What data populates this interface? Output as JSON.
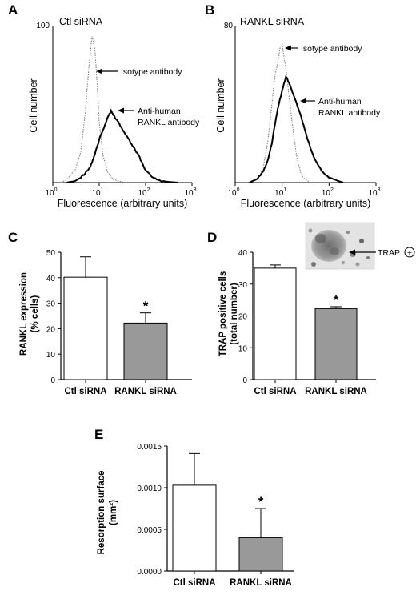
{
  "panel_labels": [
    "A",
    "B",
    "C",
    "D",
    "E"
  ],
  "chart_data": [
    {
      "panel": "A",
      "type": "line",
      "title": "Ctl siRNA",
      "xlabel": "Fluorescence (arbitrary units)",
      "ylabel": "Cell number",
      "xscale": "log",
      "xlim": [
        1,
        1000
      ],
      "ylim": [
        0,
        100
      ],
      "xticks": [
        {
          "base": "10",
          "exp": "0"
        },
        {
          "base": "10",
          "exp": "1"
        },
        {
          "base": "10",
          "exp": "2"
        },
        {
          "base": "10",
          "exp": "3"
        }
      ],
      "ytick_labels": [
        "100"
      ],
      "annotations": [
        {
          "text": "Isotype antibody",
          "points_to": "Isotype antibody"
        },
        {
          "text": "Anti-human",
          "text2": "RANKL antibody",
          "points_to": "Anti-human RANKL antibody"
        }
      ],
      "series": [
        {
          "name": "Isotype antibody",
          "style": "dotted",
          "x": [
            1.5,
            2,
            3,
            4,
            5,
            6,
            7,
            8,
            9,
            10,
            12,
            15,
            20,
            30,
            40
          ],
          "y": [
            0,
            2,
            8,
            20,
            45,
            75,
            95,
            88,
            65,
            40,
            18,
            7,
            2,
            0.5,
            0
          ]
        },
        {
          "name": "Anti-human RANKL antibody",
          "style": "solid",
          "x": [
            2,
            3,
            4,
            5,
            6,
            7,
            8,
            10,
            12,
            15,
            18,
            20,
            25,
            30,
            40,
            50,
            60,
            70,
            80,
            100,
            150,
            200,
            300,
            500
          ],
          "y": [
            0,
            1,
            3,
            6,
            9,
            13,
            18,
            28,
            34,
            42,
            47,
            44,
            40,
            36,
            30,
            25,
            21,
            18,
            14,
            8,
            3,
            1.5,
            0.5,
            0
          ]
        }
      ]
    },
    {
      "panel": "B",
      "type": "line",
      "title": "RANKL siRNA",
      "xlabel": "Fluorescence (arbitrary units)",
      "ylabel": "Cell number",
      "xscale": "log",
      "xlim": [
        1,
        1000
      ],
      "ylim": [
        0,
        80
      ],
      "xticks": [
        {
          "base": "10",
          "exp": "0"
        },
        {
          "base": "10",
          "exp": "1"
        },
        {
          "base": "10",
          "exp": "2"
        },
        {
          "base": "10",
          "exp": "3"
        }
      ],
      "ytick_labels": [
        "80"
      ],
      "annotations": [
        {
          "text": "Isotype antibody",
          "points_to": "Isotype antibody"
        },
        {
          "text": "Anti-human",
          "text2": "RANKL antibody",
          "points_to": "Anti-human RANKL antibody"
        }
      ],
      "series": [
        {
          "name": "Isotype antibody",
          "style": "dotted",
          "x": [
            2,
            3,
            4,
            5,
            6,
            7,
            8,
            9,
            10,
            11,
            12,
            14,
            17,
            20,
            25,
            30,
            40
          ],
          "y": [
            0,
            2,
            8,
            22,
            40,
            55,
            62,
            70,
            72,
            65,
            60,
            45,
            28,
            15,
            5,
            2,
            0
          ]
        },
        {
          "name": "Anti-human RANKL antibody",
          "style": "solid",
          "x": [
            2,
            3,
            4,
            5,
            6,
            7,
            8,
            10,
            12,
            14,
            16,
            20,
            25,
            30,
            40,
            50,
            70,
            100,
            150,
            200
          ],
          "y": [
            0,
            2,
            6,
            12,
            20,
            30,
            38,
            48,
            55,
            52,
            48,
            42,
            35,
            28,
            18,
            12,
            6,
            2.5,
            1,
            0
          ]
        }
      ]
    },
    {
      "panel": "C",
      "type": "bar",
      "categories": [
        "Ctl siRNA",
        "RANKL siRNA"
      ],
      "values": [
        40.2,
        22.2
      ],
      "errors": [
        8.0,
        4.0
      ],
      "colors": [
        "#ffffff",
        "#999999"
      ],
      "ylabel": "RANKL expression",
      "ylabel2": "(% cells)",
      "ylim": [
        0,
        50
      ],
      "yticks": [
        0,
        10,
        20,
        30,
        40,
        50
      ],
      "significance": [
        "",
        "*"
      ]
    },
    {
      "panel": "D",
      "type": "bar",
      "categories": [
        "Ctl siRNA",
        "RANKL siRNA"
      ],
      "values": [
        35.0,
        22.3
      ],
      "errors": [
        1.0,
        0.6
      ],
      "colors": [
        "#ffffff",
        "#999999"
      ],
      "ylabel": "TRAP positive cells",
      "ylabel2": "(total number)",
      "ylim": [
        0,
        40
      ],
      "yticks": [
        0,
        10,
        20,
        30,
        40
      ],
      "significance": [
        "",
        "*"
      ],
      "inset_label": "TRAP",
      "inset_symbol": "+"
    },
    {
      "panel": "E",
      "type": "bar",
      "categories": [
        "Ctl siRNA",
        "RANKL siRNA"
      ],
      "values": [
        0.00103,
        0.0004
      ],
      "errors": [
        0.00038,
        0.00035
      ],
      "colors": [
        "#ffffff",
        "#999999"
      ],
      "ylabel": "Resorption surface",
      "ylabel2": "(mm²)",
      "ylim": [
        0,
        0.0015
      ],
      "yticks": [
        0,
        0.0005,
        0.001,
        0.0015
      ],
      "ytick_labels": [
        "0.0000",
        "0.0005",
        "0.0010",
        "0.0015"
      ],
      "significance": [
        "",
        "*"
      ]
    }
  ]
}
